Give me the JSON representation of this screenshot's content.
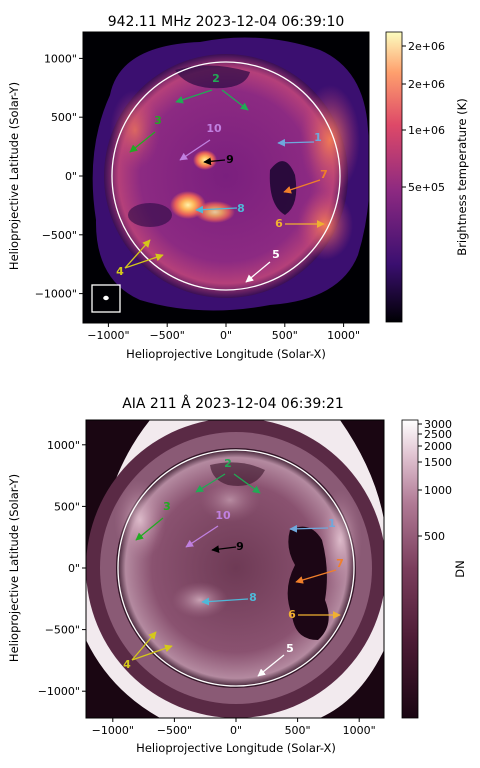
{
  "panels": [
    {
      "id": "radio",
      "title": "942.11 MHz 2023-12-04 06:39:10",
      "xlabel": "Helioprojective Longitude (Solar-X)",
      "ylabel": "Helioprojective Latitude (Solar-Y)",
      "xticks": [
        "−1000\"",
        "−500\"",
        "0\"",
        "500\"",
        "1000\""
      ],
      "yticks": [
        "1000\"",
        "500\"",
        "0\"",
        "−500\"",
        "−1000\""
      ],
      "colorbar_label": "Brightness temperature (K)",
      "colorbar_ticks": [
        "2e+06",
        "2e+06",
        "1e+06",
        "5e+05"
      ],
      "colormap": [
        "#000004",
        "#3b0f70",
        "#8c2981",
        "#de4968",
        "#fe9f6d",
        "#fcfdbf"
      ]
    },
    {
      "id": "aia",
      "title": "AIA 211 Å 2023-12-04 06:39:21",
      "xlabel": "Helioprojective Longitude (Solar-X)",
      "ylabel": "Helioprojective Latitude (Solar-Y)",
      "xticks": [
        "−1000\"",
        "−500\"",
        "0\"",
        "500\"",
        "1000\""
      ],
      "yticks": [
        "1000\"",
        "500\"",
        "0\"",
        "−500\"",
        "−1000\""
      ],
      "colorbar_label": "DN",
      "colorbar_ticks": [
        "3000",
        "2500",
        "2000",
        "1500",
        "1000",
        "500"
      ],
      "colormap": [
        "#1a0612",
        "#4a1a33",
        "#7a3d5c",
        "#b07a95",
        "#e0c3d1",
        "#ffffff"
      ]
    }
  ],
  "annotations": [
    {
      "label": "1",
      "color": "#6fa8dc"
    },
    {
      "label": "2",
      "color": "#22aa55"
    },
    {
      "label": "3",
      "color": "#22aa22"
    },
    {
      "label": "4",
      "color": "#d4c81a"
    },
    {
      "label": "5",
      "color": "#ffffff"
    },
    {
      "label": "6",
      "color": "#f0b030"
    },
    {
      "label": "7",
      "color": "#f07f2a"
    },
    {
      "label": "8",
      "color": "#4fb8d8"
    },
    {
      "label": "9",
      "color": "#000000"
    },
    {
      "label": "10",
      "color": "#c080e0"
    }
  ]
}
